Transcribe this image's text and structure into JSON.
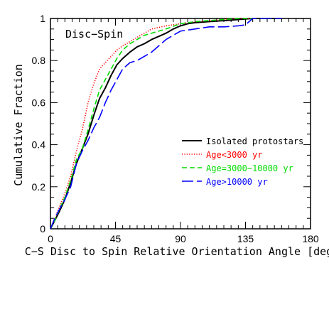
{
  "chart_data": {
    "type": "line",
    "title": "",
    "annotation": "Disc−Spin",
    "xlabel": "C−S Disc to Spin Relative Orientation Angle [deg]",
    "ylabel": "Cumulative Fraction",
    "xlim": [
      0,
      180
    ],
    "ylim": [
      0,
      1
    ],
    "xticks": [
      0,
      45,
      90,
      135,
      180
    ],
    "yticks": [
      0,
      0.2,
      0.4,
      0.6,
      0.8,
      1
    ],
    "xtick_labels": [
      "0",
      "45",
      "90",
      "135",
      "180"
    ],
    "ytick_labels": [
      "0",
      "0.2",
      "0.4",
      "0.6",
      "0.8",
      "1"
    ],
    "legend_position": "lower-right",
    "grid": false,
    "series": [
      {
        "name": "Isolated protostars",
        "color": "#000000",
        "style": "solid",
        "x": [
          0,
          3,
          6,
          10,
          14,
          18,
          22,
          26,
          30,
          34,
          38,
          42,
          46,
          50,
          55,
          60,
          65,
          70,
          75,
          80,
          85,
          90,
          95,
          100,
          110,
          120,
          130,
          140,
          150,
          160
        ],
        "y": [
          0.0,
          0.04,
          0.08,
          0.14,
          0.22,
          0.31,
          0.38,
          0.45,
          0.54,
          0.62,
          0.67,
          0.73,
          0.78,
          0.81,
          0.84,
          0.865,
          0.88,
          0.9,
          0.915,
          0.93,
          0.95,
          0.965,
          0.975,
          0.98,
          0.985,
          0.99,
          0.995,
          1.0,
          1.0,
          1.0
        ]
      },
      {
        "name": "Age<3000 yr",
        "color": "#ff0000",
        "style": "dotted",
        "x": [
          0,
          3,
          6,
          10,
          14,
          18,
          22,
          26,
          30,
          34,
          38,
          42,
          46,
          50,
          55,
          60,
          65,
          70,
          80,
          90,
          100,
          110,
          120,
          130,
          140
        ],
        "y": [
          0.0,
          0.05,
          0.1,
          0.17,
          0.25,
          0.37,
          0.47,
          0.6,
          0.69,
          0.76,
          0.79,
          0.82,
          0.85,
          0.87,
          0.89,
          0.91,
          0.93,
          0.95,
          0.965,
          0.975,
          0.985,
          0.99,
          0.995,
          1.0,
          1.0
        ]
      },
      {
        "name": "Age=3000−10000 yr",
        "color": "#00dd00",
        "style": "dashed",
        "x": [
          0,
          3,
          6,
          10,
          14,
          18,
          22,
          26,
          30,
          34,
          38,
          42,
          46,
          50,
          55,
          60,
          65,
          70,
          75,
          80,
          90,
          100,
          110,
          120,
          130,
          140
        ],
        "y": [
          0.0,
          0.04,
          0.09,
          0.15,
          0.23,
          0.33,
          0.38,
          0.47,
          0.57,
          0.66,
          0.71,
          0.76,
          0.81,
          0.85,
          0.88,
          0.9,
          0.92,
          0.93,
          0.94,
          0.95,
          0.975,
          0.985,
          0.99,
          0.995,
          1.0,
          1.0
        ]
      },
      {
        "name": "Age>10000 yr",
        "color": "#0000ff",
        "style": "longdash",
        "x": [
          0,
          3,
          6,
          10,
          14,
          18,
          22,
          26,
          30,
          34,
          38,
          42,
          46,
          50,
          55,
          60,
          65,
          70,
          75,
          80,
          90,
          100,
          110,
          120,
          130,
          135,
          140,
          150,
          160
        ],
        "y": [
          0.0,
          0.05,
          0.09,
          0.14,
          0.2,
          0.31,
          0.37,
          0.42,
          0.48,
          0.53,
          0.6,
          0.66,
          0.71,
          0.76,
          0.79,
          0.8,
          0.82,
          0.84,
          0.87,
          0.9,
          0.94,
          0.95,
          0.96,
          0.96,
          0.965,
          0.97,
          1.0,
          1.0,
          1.0
        ]
      }
    ]
  }
}
